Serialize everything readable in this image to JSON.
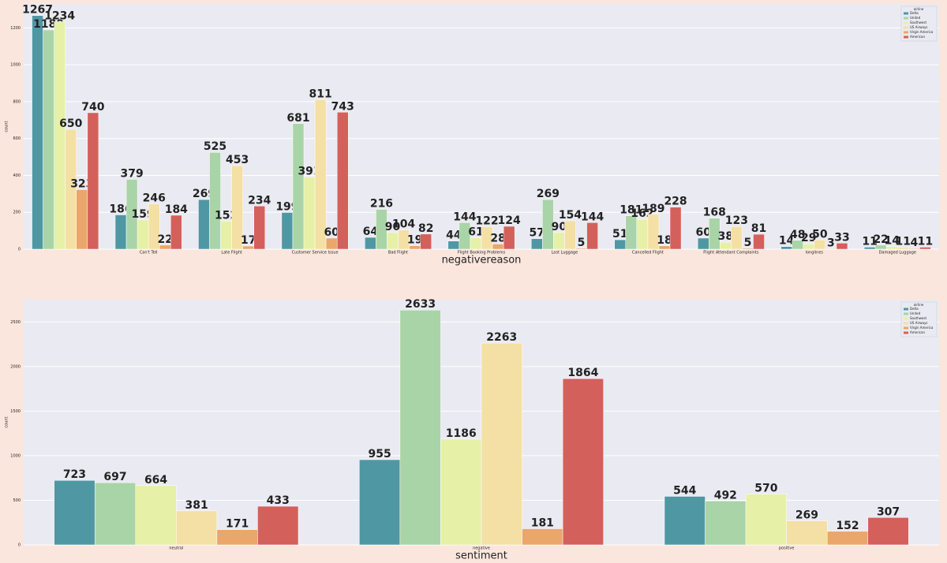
{
  "chart_data": [
    {
      "type": "bar",
      "xlabel": "negativereason",
      "ylabel": "count",
      "legend_title": "airline",
      "legend": "upper right",
      "grid": true,
      "categories": [
        null,
        "Can't Tell",
        "Late Flight",
        "Customer Service Issue",
        "Bad Flight",
        "Flight Booking Problems",
        "Lost Luggage",
        "Cancelled Flight",
        "Flight Attendant Complaints",
        "longlines",
        "Damaged Luggage"
      ],
      "ylim": [
        0,
        1330
      ],
      "yticks": [
        0,
        200,
        400,
        600,
        800,
        1000,
        1200
      ],
      "series": [
        {
          "name": "Delta",
          "color": "#5097a4",
          "values": [
            1267,
            186,
            269,
            199,
            64,
            44,
            57,
            51,
            60,
            14,
            11
          ]
        },
        {
          "name": "United",
          "color": "#a9d4a7",
          "values": [
            1189,
            379,
            525,
            681,
            216,
            144,
            269,
            181,
            168,
            48,
            22
          ]
        },
        {
          "name": "Southwest",
          "color": "#e6f0a6",
          "values": [
            1234,
            159,
            152,
            391,
            90,
            61,
            90,
            162,
            38,
            29,
            14
          ]
        },
        {
          "name": "US Airways",
          "color": "#f4e0a4",
          "values": [
            650,
            246,
            453,
            811,
            104,
            122,
            154,
            189,
            123,
            50,
            11
          ]
        },
        {
          "name": "Virgin America",
          "color": "#eaa66b",
          "values": [
            323,
            22,
            17,
            60,
            19,
            28,
            5,
            18,
            5,
            3,
            4
          ]
        },
        {
          "name": "American",
          "color": "#d4605b",
          "values": [
            740,
            184,
            234,
            743,
            82,
            124,
            144,
            228,
            81,
            33,
            11
          ]
        }
      ]
    },
    {
      "type": "bar",
      "xlabel": "sentiment",
      "ylabel": "count",
      "legend_title": "airline",
      "legend": "upper right",
      "grid": true,
      "categories": [
        "neutral",
        "negative",
        "positive"
      ],
      "ylim": [
        0,
        2750
      ],
      "yticks": [
        0,
        500,
        1000,
        1500,
        2000,
        2500
      ],
      "series": [
        {
          "name": "Delta",
          "color": "#5097a4",
          "values": [
            723,
            955,
            544
          ]
        },
        {
          "name": "United",
          "color": "#a9d4a7",
          "values": [
            697,
            2633,
            492
          ]
        },
        {
          "name": "Southwest",
          "color": "#e6f0a6",
          "values": [
            664,
            1186,
            570
          ]
        },
        {
          "name": "US Airways",
          "color": "#f4e0a4",
          "values": [
            381,
            2263,
            269
          ]
        },
        {
          "name": "Virgin America",
          "color": "#eaa66b",
          "values": [
            171,
            181,
            152
          ]
        },
        {
          "name": "American",
          "color": "#d4605b",
          "values": [
            433,
            1864,
            307
          ]
        }
      ]
    }
  ]
}
